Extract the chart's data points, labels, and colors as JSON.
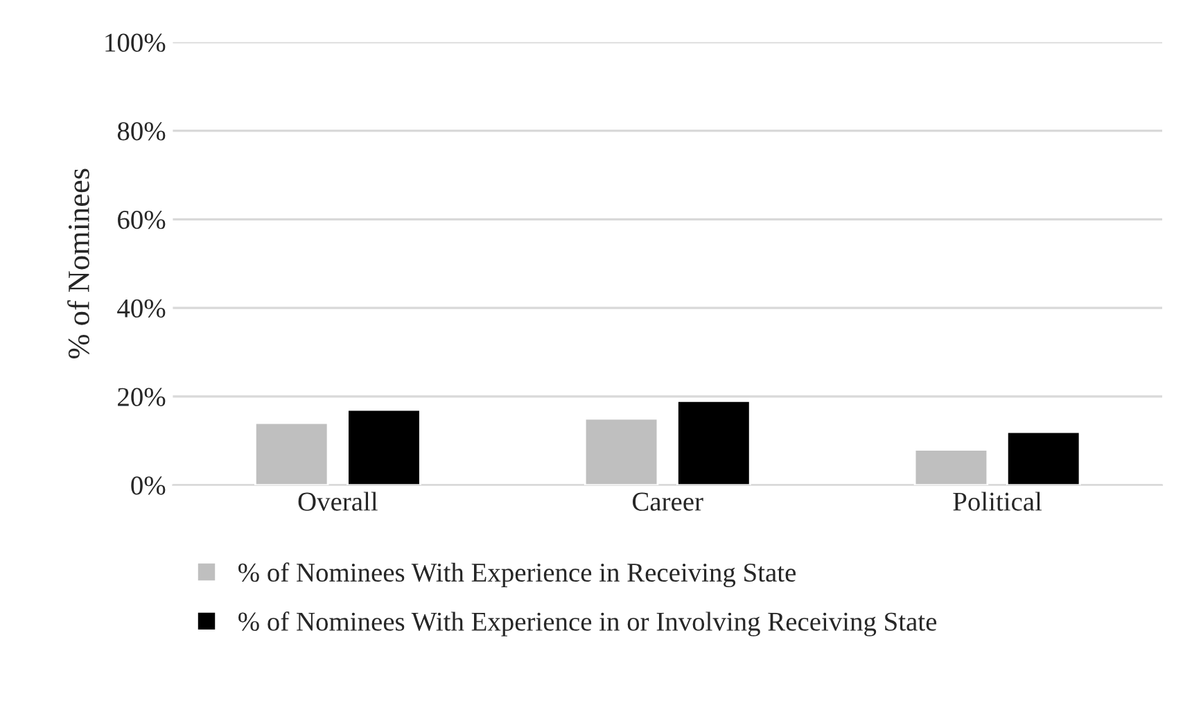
{
  "chart_data": {
    "type": "bar",
    "ylabel": "% of Nominees",
    "categories": [
      "Overall",
      "Career",
      "Political"
    ],
    "series": [
      {
        "name": "% of Nominees With Experience in Receiving State",
        "color": "#bfbfbf",
        "values": [
          14,
          15,
          8
        ]
      },
      {
        "name": "% of Nominees With Experience in or Involving Receiving State",
        "color": "#000000",
        "values": [
          17,
          19,
          12
        ]
      }
    ],
    "ylim": [
      0,
      100
    ],
    "yticks": [
      {
        "value": 0,
        "label": "0%"
      },
      {
        "value": 20,
        "label": "20%"
      },
      {
        "value": 40,
        "label": "40%"
      },
      {
        "value": 60,
        "label": "60%"
      },
      {
        "value": 80,
        "label": "80%"
      },
      {
        "value": 100,
        "label": "100%"
      }
    ],
    "grid": "y",
    "legend": "bottom"
  }
}
